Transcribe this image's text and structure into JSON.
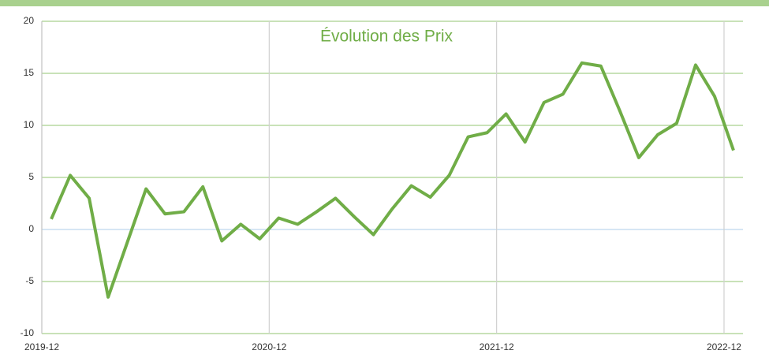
{
  "chart_data": {
    "type": "line",
    "title": "Évolution des Prix",
    "x": [
      0.5,
      1.5,
      2.5,
      3.5,
      4.5,
      5.5,
      6.5,
      7.5,
      8.5,
      9.5,
      10.5,
      11.5,
      12.5,
      13.5,
      14.5,
      15.5,
      16.5,
      17.5,
      18.5,
      19.5,
      20.5,
      21.5,
      22.5,
      23.5,
      24.5,
      25.5,
      26.5,
      27.5,
      28.5,
      29.5,
      30.5,
      31.5,
      32.5,
      33.5,
      34.5,
      35.5,
      36.5
    ],
    "series": [
      {
        "name": "Prix",
        "color": "#70ad47",
        "values": [
          1.0,
          5.2,
          3.0,
          -6.5,
          -1.3,
          3.9,
          1.5,
          1.7,
          4.1,
          -1.1,
          0.5,
          -0.9,
          1.1,
          0.5,
          1.7,
          3.0,
          1.2,
          -0.5,
          2.0,
          4.2,
          3.1,
          5.2,
          8.9,
          9.3,
          11.1,
          8.4,
          12.2,
          13.0,
          16.0,
          15.7,
          11.4,
          6.9,
          9.1,
          10.2,
          15.8,
          12.8,
          7.6
        ]
      }
    ],
    "xlim": [
      0,
      37
    ],
    "xticks": [
      {
        "value": 0,
        "label": "2019-12"
      },
      {
        "value": 12,
        "label": "2020-12"
      },
      {
        "value": 24,
        "label": "2021-12"
      },
      {
        "value": 36,
        "label": "2022-12"
      }
    ],
    "ylim": [
      -10,
      20
    ],
    "yticks": [
      -10,
      -5,
      0,
      5,
      10,
      15,
      20
    ],
    "grid": true
  }
}
